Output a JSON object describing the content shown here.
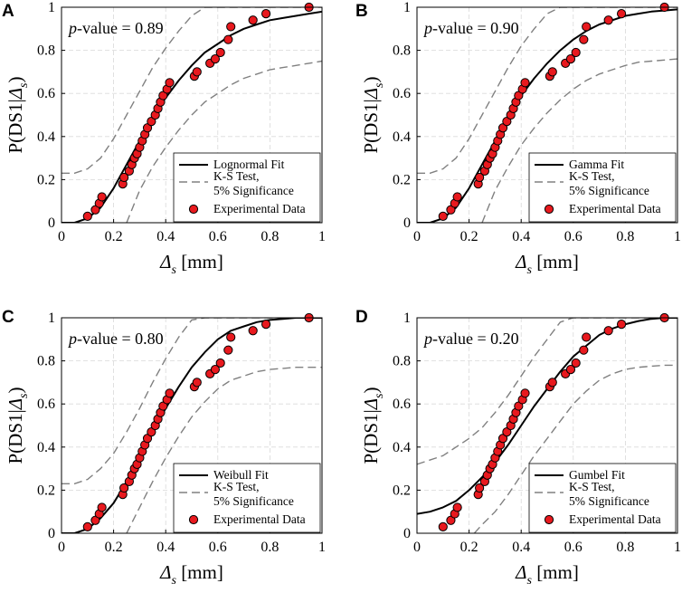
{
  "figure": {
    "colors": {
      "fit": "#000000",
      "ks": "#808080",
      "marker_fill": "#e8191e",
      "marker_edge": "#000000",
      "grid": "#d9d9d9"
    },
    "shared": {
      "xlabel_symbol": "Δ",
      "xlabel_sub": "s",
      "xlabel_unit": " [mm]",
      "ylabel_prefix": "P(DS1|",
      "ylabel_symbol": "Δ",
      "ylabel_sub": "s",
      "ylabel_suffix": ")",
      "legend_ks_line1": "K-S Test,",
      "legend_ks_line2": "5% Significance",
      "legend_data": "Experimental Data",
      "pvalue_prefix": "p",
      "pvalue_mid": "-value = "
    }
  },
  "chart_data": [
    {
      "panel": "A",
      "type": "line",
      "title": "Lognormal Fit",
      "fit_label": "Lognormal Fit",
      "p_value": "0.89",
      "xlim": [
        0,
        1
      ],
      "ylim": [
        0,
        1
      ],
      "xticks": [
        "0",
        "0.2",
        "0.4",
        "0.6",
        "0.8",
        "1"
      ],
      "yticks": [
        "0",
        "0.2",
        "0.4",
        "0.6",
        "0.8",
        "1"
      ],
      "fit": {
        "x": [
          0,
          0.05,
          0.1,
          0.15,
          0.2,
          0.25,
          0.3,
          0.35,
          0.4,
          0.45,
          0.5,
          0.55,
          0.6,
          0.65,
          0.7,
          0.75,
          0.8,
          0.85,
          0.9,
          0.95,
          1.0
        ],
        "y": [
          0,
          0.0,
          0.02,
          0.07,
          0.16,
          0.27,
          0.38,
          0.49,
          0.58,
          0.66,
          0.73,
          0.79,
          0.83,
          0.87,
          0.9,
          0.92,
          0.94,
          0.95,
          0.96,
          0.97,
          0.98
        ]
      },
      "ks_upper": {
        "x": [
          0,
          0.05,
          0.1,
          0.15,
          0.2,
          0.25,
          0.3,
          0.35,
          0.4,
          0.45,
          0.5,
          0.55,
          0.6,
          0.65,
          0.7,
          0.75,
          0.8,
          0.85,
          0.9,
          0.95,
          1.0
        ],
        "y": [
          0.23,
          0.23,
          0.25,
          0.3,
          0.39,
          0.5,
          0.61,
          0.72,
          0.81,
          0.89,
          0.96,
          1.0,
          1.0,
          1.0,
          1.0,
          1.0,
          1.0,
          1.0,
          1.0,
          1.0,
          1.0
        ]
      },
      "ks_lower": {
        "x": [
          0.25,
          0.3,
          0.35,
          0.4,
          0.45,
          0.5,
          0.55,
          0.6,
          0.65,
          0.7,
          0.75,
          0.8,
          0.85,
          0.9,
          0.95,
          1.0
        ],
        "y": [
          0.0,
          0.15,
          0.26,
          0.35,
          0.43,
          0.5,
          0.56,
          0.6,
          0.64,
          0.67,
          0.69,
          0.71,
          0.72,
          0.73,
          0.74,
          0.75
        ]
      }
    },
    {
      "panel": "B",
      "type": "line",
      "title": "Gamma Fit",
      "fit_label": "Gamma Fit",
      "p_value": "0.90",
      "xlim": [
        0,
        1
      ],
      "ylim": [
        0,
        1
      ],
      "xticks": [
        "0",
        "0.2",
        "0.4",
        "0.6",
        "0.8",
        "1"
      ],
      "yticks": [
        "0",
        "0.2",
        "0.4",
        "0.6",
        "0.8",
        "1"
      ],
      "fit": {
        "x": [
          0,
          0.05,
          0.1,
          0.15,
          0.2,
          0.25,
          0.3,
          0.35,
          0.4,
          0.45,
          0.5,
          0.55,
          0.6,
          0.65,
          0.7,
          0.75,
          0.8,
          0.85,
          0.9,
          0.95,
          1.0
        ],
        "y": [
          0,
          0.0,
          0.02,
          0.07,
          0.16,
          0.27,
          0.38,
          0.49,
          0.59,
          0.67,
          0.74,
          0.8,
          0.85,
          0.89,
          0.92,
          0.94,
          0.96,
          0.97,
          0.98,
          0.985,
          0.99
        ]
      },
      "ks_upper": {
        "x": [
          0,
          0.05,
          0.1,
          0.15,
          0.2,
          0.25,
          0.3,
          0.35,
          0.4,
          0.45,
          0.5,
          0.55,
          0.6,
          0.65,
          0.7,
          0.75,
          0.8,
          0.85,
          0.9,
          0.95,
          1.0
        ],
        "y": [
          0.23,
          0.23,
          0.25,
          0.3,
          0.39,
          0.5,
          0.61,
          0.72,
          0.82,
          0.9,
          0.97,
          1.0,
          1.0,
          1.0,
          1.0,
          1.0,
          1.0,
          1.0,
          1.0,
          1.0,
          1.0
        ]
      },
      "ks_lower": {
        "x": [
          0.25,
          0.3,
          0.35,
          0.4,
          0.45,
          0.5,
          0.55,
          0.6,
          0.65,
          0.7,
          0.75,
          0.8,
          0.85,
          0.9,
          0.95,
          1.0
        ],
        "y": [
          0.0,
          0.15,
          0.26,
          0.36,
          0.44,
          0.51,
          0.57,
          0.62,
          0.66,
          0.69,
          0.71,
          0.73,
          0.745,
          0.75,
          0.755,
          0.76
        ]
      }
    },
    {
      "panel": "C",
      "type": "line",
      "title": "Weibull Fit",
      "fit_label": "Weibull Fit",
      "p_value": "0.80",
      "xlim": [
        0,
        1
      ],
      "ylim": [
        0,
        1
      ],
      "xticks": [
        "0",
        "0.2",
        "0.4",
        "0.6",
        "0.8",
        "1"
      ],
      "yticks": [
        "0",
        "0.2",
        "0.4",
        "0.6",
        "0.8",
        "1"
      ],
      "fit": {
        "x": [
          0,
          0.05,
          0.1,
          0.15,
          0.2,
          0.25,
          0.3,
          0.35,
          0.4,
          0.45,
          0.5,
          0.55,
          0.6,
          0.65,
          0.7,
          0.75,
          0.8,
          0.85,
          0.9,
          0.95,
          1.0
        ],
        "y": [
          0,
          0.0,
          0.02,
          0.07,
          0.14,
          0.24,
          0.35,
          0.47,
          0.58,
          0.68,
          0.77,
          0.84,
          0.9,
          0.94,
          0.96,
          0.98,
          0.99,
          0.995,
          1.0,
          1.0,
          1.0
        ]
      },
      "ks_upper": {
        "x": [
          0,
          0.05,
          0.1,
          0.15,
          0.2,
          0.25,
          0.3,
          0.35,
          0.4,
          0.45,
          0.5,
          0.55,
          0.6,
          0.65,
          0.7,
          0.75,
          0.8,
          0.85,
          0.9,
          0.95,
          1.0
        ],
        "y": [
          0.23,
          0.23,
          0.25,
          0.3,
          0.37,
          0.47,
          0.58,
          0.7,
          0.81,
          0.91,
          0.99,
          1.0,
          1.0,
          1.0,
          1.0,
          1.0,
          1.0,
          1.0,
          1.0,
          1.0,
          1.0
        ]
      },
      "ks_lower": {
        "x": [
          0.25,
          0.3,
          0.35,
          0.4,
          0.45,
          0.5,
          0.55,
          0.6,
          0.65,
          0.7,
          0.75,
          0.8,
          0.85,
          0.9,
          0.95,
          1.0
        ],
        "y": [
          0.0,
          0.12,
          0.24,
          0.35,
          0.45,
          0.54,
          0.61,
          0.67,
          0.71,
          0.73,
          0.75,
          0.76,
          0.765,
          0.77,
          0.77,
          0.77
        ]
      }
    },
    {
      "panel": "D",
      "type": "line",
      "title": "Gumbel Fit",
      "fit_label": "Gumbel Fit",
      "p_value": "0.20",
      "xlim": [
        0,
        1
      ],
      "ylim": [
        0,
        1
      ],
      "xticks": [
        "0",
        "0.2",
        "0.4",
        "0.6",
        "0.8",
        "1"
      ],
      "yticks": [
        "0",
        "0.2",
        "0.4",
        "0.6",
        "0.8",
        "1"
      ],
      "fit": {
        "x": [
          0,
          0.05,
          0.1,
          0.15,
          0.2,
          0.25,
          0.3,
          0.35,
          0.4,
          0.45,
          0.5,
          0.55,
          0.6,
          0.65,
          0.7,
          0.75,
          0.8,
          0.85,
          0.9,
          0.95,
          1.0
        ],
        "y": [
          0.09,
          0.1,
          0.12,
          0.15,
          0.2,
          0.26,
          0.33,
          0.41,
          0.5,
          0.59,
          0.67,
          0.75,
          0.82,
          0.87,
          0.92,
          0.95,
          0.97,
          0.985,
          0.995,
          1.0,
          1.0
        ]
      },
      "ks_upper": {
        "x": [
          0,
          0.05,
          0.1,
          0.15,
          0.2,
          0.25,
          0.3,
          0.35,
          0.4,
          0.45,
          0.5,
          0.55,
          0.6,
          0.65,
          0.7,
          0.75,
          0.8,
          0.85,
          0.9,
          0.95,
          1.0
        ],
        "y": [
          0.32,
          0.34,
          0.36,
          0.4,
          0.44,
          0.49,
          0.56,
          0.64,
          0.73,
          0.82,
          0.9,
          0.98,
          1.0,
          1.0,
          1.0,
          1.0,
          1.0,
          1.0,
          1.0,
          1.0,
          1.0
        ]
      },
      "ks_lower": {
        "x": [
          0.22,
          0.25,
          0.3,
          0.35,
          0.4,
          0.45,
          0.5,
          0.55,
          0.6,
          0.65,
          0.7,
          0.75,
          0.8,
          0.85,
          0.9,
          0.95,
          1.0
        ],
        "y": [
          0.0,
          0.04,
          0.1,
          0.18,
          0.27,
          0.36,
          0.44,
          0.52,
          0.6,
          0.66,
          0.71,
          0.74,
          0.76,
          0.77,
          0.775,
          0.78,
          0.78
        ]
      }
    }
  ],
  "experimental_data": {
    "x": [
      0.1,
      0.13,
      0.145,
      0.155,
      0.235,
      0.24,
      0.26,
      0.27,
      0.28,
      0.29,
      0.3,
      0.31,
      0.32,
      0.33,
      0.345,
      0.36,
      0.37,
      0.38,
      0.39,
      0.405,
      0.415,
      0.51,
      0.52,
      0.57,
      0.59,
      0.61,
      0.64,
      0.65,
      0.735,
      0.785,
      0.95
    ],
    "y": [
      0.03,
      0.06,
      0.09,
      0.12,
      0.18,
      0.21,
      0.24,
      0.27,
      0.3,
      0.32,
      0.35,
      0.38,
      0.41,
      0.44,
      0.47,
      0.5,
      0.53,
      0.56,
      0.59,
      0.62,
      0.65,
      0.68,
      0.7,
      0.74,
      0.76,
      0.79,
      0.85,
      0.91,
      0.94,
      0.97,
      1.0
    ]
  }
}
